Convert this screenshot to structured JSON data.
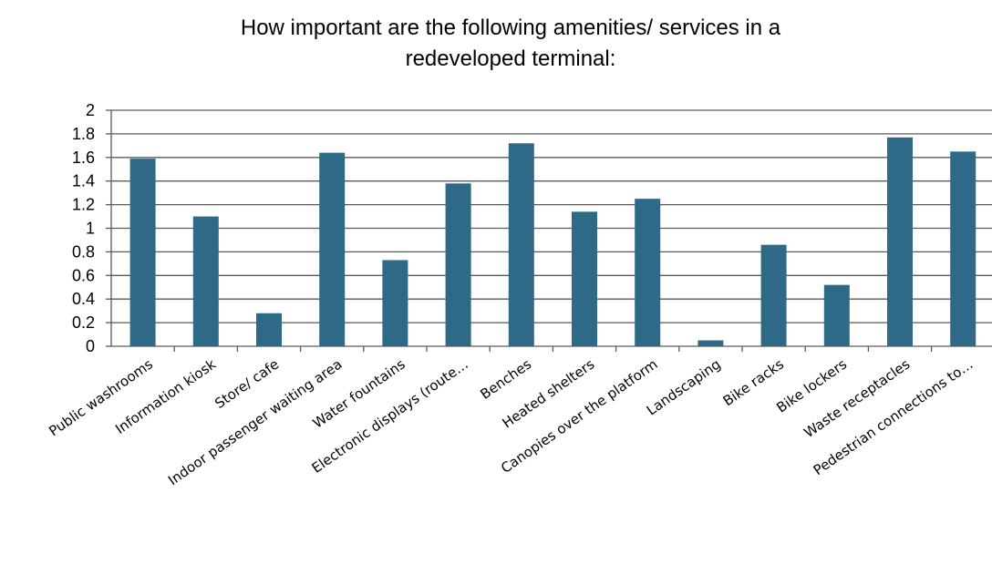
{
  "chart_data": {
    "type": "bar",
    "title": "How important are the following amenities/ services in a redeveloped terminal:",
    "title_lines": [
      "How important are the following amenities/ services in a",
      "redeveloped terminal:"
    ],
    "categories": [
      "Public washrooms",
      "Information kiosk",
      "Store/ cafe",
      "Indoor passenger waiting area",
      "Water fountains",
      "Electronic displays (route…",
      "Benches",
      "Heated shelters",
      "Canopies over the platform",
      "Landscaping",
      "Bike racks",
      "Bike lockers",
      "Waste receptacles",
      "Pedestrian connections to…"
    ],
    "values": [
      1.59,
      1.1,
      0.28,
      1.64,
      0.73,
      1.38,
      1.72,
      1.14,
      1.25,
      0.05,
      0.86,
      0.52,
      1.77,
      1.65
    ],
    "ylim": [
      0,
      2
    ],
    "yticks": [
      "0",
      "0.2",
      "0.4",
      "0.6",
      "0.8",
      "1",
      "1.2",
      "1.4",
      "1.6",
      "1.8",
      "2"
    ],
    "xlabel": "",
    "ylabel": "",
    "grid": true,
    "legend": "none",
    "bar_color": "#2e6a87",
    "grid_color": "#5a5a5a"
  }
}
